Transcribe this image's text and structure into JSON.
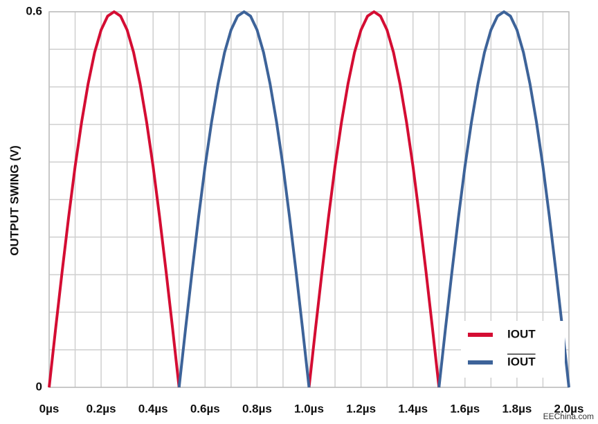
{
  "chart_data": {
    "type": "line",
    "y_label": "OUTPUT SWING (V)",
    "watermark": "EEChina.com",
    "xlim": [
      0,
      2.0
    ],
    "ylim": [
      0,
      0.6
    ],
    "yticks": [
      0,
      0.6
    ],
    "ygrid": [
      0.06,
      0.12,
      0.18,
      0.24,
      0.3,
      0.36,
      0.42,
      0.48,
      0.54
    ],
    "xticks": [
      {
        "value": 0,
        "label": "0µs"
      },
      {
        "value": 0.2,
        "label": "0.2µs"
      },
      {
        "value": 0.4,
        "label": "0.4µs"
      },
      {
        "value": 0.6,
        "label": "0.6µs"
      },
      {
        "value": 0.8,
        "label": "0.8µs"
      },
      {
        "value": 1.0,
        "label": "1.0µs"
      },
      {
        "value": 1.2,
        "label": "1.2µs"
      },
      {
        "value": 1.4,
        "label": "1.4µs"
      },
      {
        "value": 1.6,
        "label": "1.6µs"
      },
      {
        "value": 1.8,
        "label": "1.8µs"
      },
      {
        "value": 2.0,
        "label": "2.0µs"
      }
    ],
    "xgrid": [
      0.1,
      0.3,
      0.5,
      0.7,
      0.9,
      1.1,
      1.3,
      1.5,
      1.7,
      1.9
    ],
    "grid": true,
    "legend": "lower right",
    "x": [
      0,
      0.025,
      0.05,
      0.075,
      0.1,
      0.125,
      0.15,
      0.175,
      0.2,
      0.225,
      0.25,
      0.275,
      0.3,
      0.325,
      0.35,
      0.375,
      0.4,
      0.425,
      0.45,
      0.475,
      0.5,
      0.525,
      0.55,
      0.575,
      0.6,
      0.625,
      0.65,
      0.675,
      0.7,
      0.725,
      0.75,
      0.775,
      0.8,
      0.825,
      0.85,
      0.875,
      0.9,
      0.925,
      0.95,
      0.975,
      1.0,
      1.025,
      1.05,
      1.075,
      1.1,
      1.125,
      1.15,
      1.175,
      1.2,
      1.225,
      1.25,
      1.275,
      1.3,
      1.325,
      1.35,
      1.375,
      1.4,
      1.425,
      1.45,
      1.475,
      1.5,
      1.525,
      1.55,
      1.575,
      1.6,
      1.625,
      1.65,
      1.675,
      1.7,
      1.725,
      1.75,
      1.775,
      1.8,
      1.825,
      1.85,
      1.875,
      1.9,
      1.925,
      1.95,
      1.975,
      2.0
    ],
    "series": [
      {
        "name": "IOUT",
        "color": "#d40d33",
        "values": [
          0,
          0.094,
          0.185,
          0.272,
          0.353,
          0.424,
          0.485,
          0.535,
          0.571,
          0.593,
          0.6,
          0.593,
          0.571,
          0.535,
          0.485,
          0.424,
          0.353,
          0.272,
          0.185,
          0.094,
          0,
          null,
          null,
          null,
          null,
          null,
          null,
          null,
          null,
          null,
          null,
          null,
          null,
          null,
          null,
          null,
          null,
          null,
          null,
          null,
          0,
          0.094,
          0.185,
          0.272,
          0.353,
          0.424,
          0.485,
          0.535,
          0.571,
          0.593,
          0.6,
          0.593,
          0.571,
          0.535,
          0.485,
          0.424,
          0.353,
          0.272,
          0.185,
          0.094,
          0,
          null,
          null,
          null,
          null,
          null,
          null,
          null,
          null,
          null,
          null,
          null,
          null,
          null,
          null,
          null,
          null,
          null,
          null,
          null,
          null
        ]
      },
      {
        "name": "IOUT",
        "overline": true,
        "color": "#3d6399",
        "values": [
          null,
          null,
          null,
          null,
          null,
          null,
          null,
          null,
          null,
          null,
          null,
          null,
          null,
          null,
          null,
          null,
          null,
          null,
          null,
          null,
          0,
          0.094,
          0.185,
          0.272,
          0.353,
          0.424,
          0.485,
          0.535,
          0.571,
          0.593,
          0.6,
          0.593,
          0.571,
          0.535,
          0.485,
          0.424,
          0.353,
          0.272,
          0.185,
          0.094,
          0,
          null,
          null,
          null,
          null,
          null,
          null,
          null,
          null,
          null,
          null,
          null,
          null,
          null,
          null,
          null,
          null,
          null,
          null,
          null,
          0,
          0.094,
          0.185,
          0.272,
          0.353,
          0.424,
          0.485,
          0.535,
          0.571,
          0.593,
          0.6,
          0.593,
          0.571,
          0.535,
          0.485,
          0.424,
          0.353,
          0.272,
          0.185,
          0.094,
          0
        ]
      }
    ]
  }
}
